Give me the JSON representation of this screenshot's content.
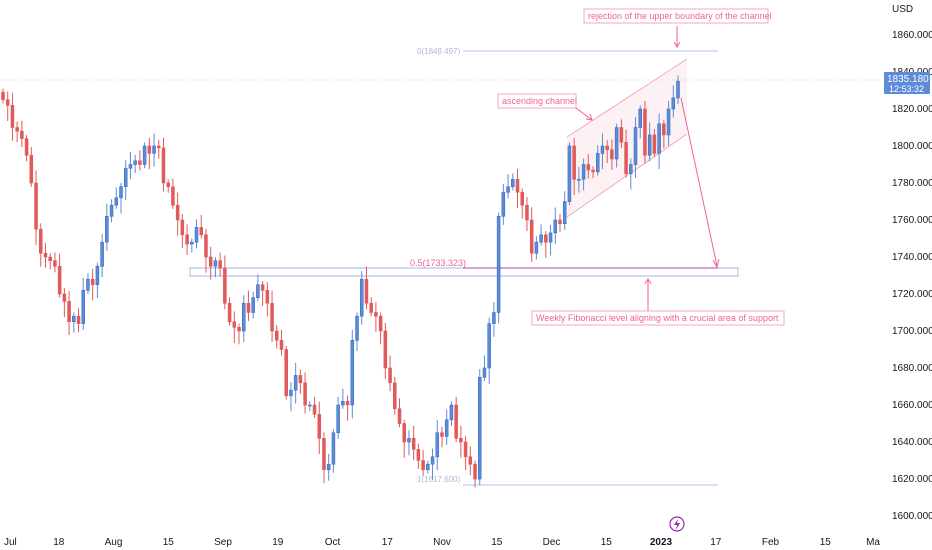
{
  "chart_data": {
    "type": "candlestick",
    "currency": "USD",
    "ylim": [
      1595,
      1872
    ],
    "y_ticks": [
      "1600.000",
      "1620.000",
      "1640.000",
      "1660.000",
      "1680.000",
      "1700.000",
      "1720.000",
      "1740.000",
      "1760.000",
      "1780.000",
      "1800.000",
      "1820.000",
      "1840.000",
      "1860.000"
    ],
    "x_ticks": [
      "Jul",
      "18",
      "Aug",
      "15",
      "Sep",
      "19",
      "Oct",
      "17",
      "Nov",
      "15",
      "Dec",
      "15",
      "2023",
      "17",
      "Feb",
      "15",
      "Ma"
    ],
    "last_price": "1835.180",
    "countdown": "12:53:32",
    "fib_levels": {
      "top": "0(1849.497)",
      "mid": "0.5(1733.323)",
      "bottom": "1(1617.600)"
    },
    "annotations": {
      "rejection": "rejection of the upper boundary of the channel",
      "channel": "ascending channel",
      "fibonacci": "Weekly Fibonacci level aligning with a crucial area of support"
    },
    "colors": {
      "up": "#5b8bd9",
      "down": "#e05a5a",
      "annotation": "#f06292",
      "fib": "#b6c6f0",
      "fib_mid": "#b040b8"
    },
    "closes": [
      1825,
      1822,
      1810,
      1808,
      1804,
      1795,
      1780,
      1755,
      1742,
      1740,
      1738,
      1735,
      1720,
      1716,
      1705,
      1708,
      1704,
      1722,
      1728,
      1725,
      1735,
      1748,
      1762,
      1768,
      1772,
      1778,
      1788,
      1790,
      1792,
      1790,
      1800,
      1796,
      1800,
      1799,
      1780,
      1778,
      1768,
      1760,
      1752,
      1747,
      1748,
      1756,
      1752,
      1740,
      1735,
      1738,
      1734,
      1715,
      1705,
      1702,
      1700,
      1715,
      1710,
      1718,
      1725,
      1722,
      1715,
      1700,
      1695,
      1690,
      1665,
      1668,
      1676,
      1672,
      1660,
      1660,
      1655,
      1642,
      1625,
      1628,
      1645,
      1660,
      1662,
      1660,
      1695,
      1708,
      1728,
      1715,
      1710,
      1708,
      1700,
      1680,
      1672,
      1658,
      1650,
      1640,
      1642,
      1636,
      1630,
      1625,
      1628,
      1632,
      1645,
      1643,
      1652,
      1660,
      1642,
      1640,
      1632,
      1628,
      1620,
      1675,
      1680,
      1704,
      1710,
      1762,
      1775,
      1778,
      1782,
      1775,
      1768,
      1760,
      1742,
      1748,
      1752,
      1748,
      1753,
      1760,
      1758,
      1770,
      1800,
      1782,
      1782,
      1790,
      1787,
      1786,
      1796,
      1800,
      1798,
      1793,
      1810,
      1802,
      1785,
      1790,
      1810,
      1820,
      1795,
      1806,
      1796,
      1812,
      1806,
      1820,
      1826,
      1835
    ]
  },
  "time_axis_event_icon": "lightning-icon"
}
